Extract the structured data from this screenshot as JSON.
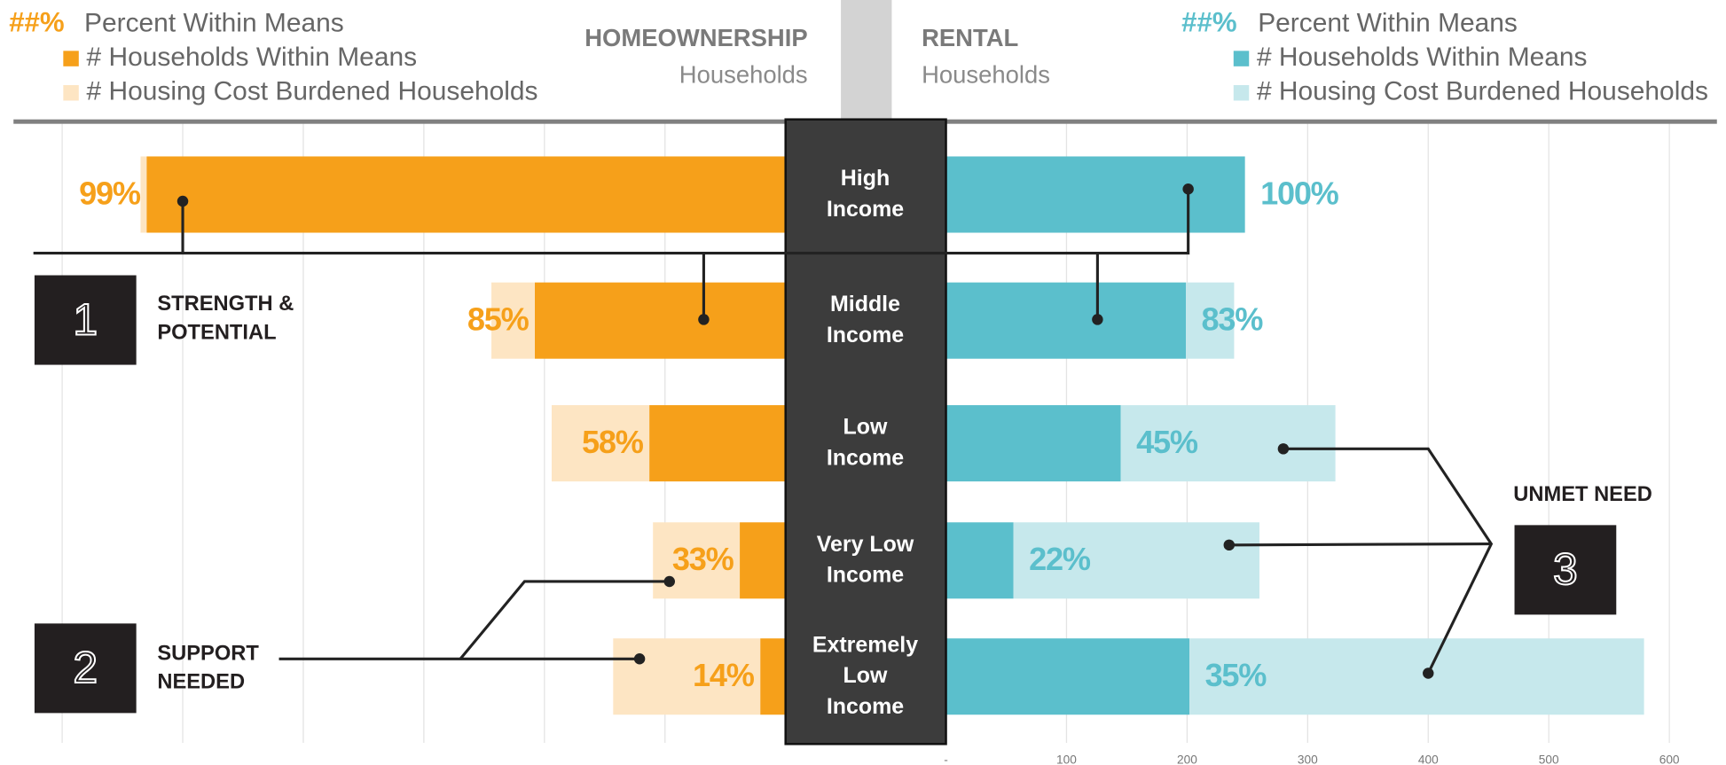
{
  "chart_data": {
    "type": "diverging_bar",
    "categories": [
      "High\nIncome",
      "Middle\nIncome",
      "Low\nIncome",
      "Very Low\nIncome",
      "Extremely\nLow\nIncome"
    ],
    "xlim": [
      0,
      650
    ],
    "xticks": [
      {
        "value": 0,
        "label": "-"
      },
      100,
      200,
      300,
      400,
      500,
      600
    ],
    "grid": true,
    "panels": [
      {
        "title": "HOMEOWNERSHIP",
        "subtitle": "Households",
        "side": "left",
        "percent_marker": "##%",
        "percent_name": "Percent Within Means",
        "percent_values": [
          99,
          85,
          58,
          33,
          14
        ],
        "percent_labels": [
          "99%",
          "85%",
          "58%",
          "33%",
          "14%"
        ],
        "percent_color": "#f6a01a",
        "series": [
          {
            "name": "# Households Within Means",
            "color": "#f6a01a",
            "values": [
              530,
              208,
              113,
              38,
              21
            ]
          },
          {
            "name": "# Housing Cost Burdened Households",
            "color": "#fde5c3",
            "values": [
              5,
              36,
              81,
              72,
              122
            ]
          }
        ]
      },
      {
        "title": "RENTAL",
        "subtitle": "Households",
        "side": "right",
        "percent_marker": "##%",
        "percent_name": "Percent Within Means",
        "percent_values": [
          100,
          83,
          45,
          22,
          35
        ],
        "percent_labels": [
          "100%",
          "83%",
          "45%",
          "22%",
          "35%"
        ],
        "percent_color": "#5bbfcc",
        "series": [
          {
            "name": "# Households Within Means",
            "color": "#5bbfcc",
            "values": [
              248,
              199,
              145,
              56,
              202
            ]
          },
          {
            "name": "# Housing Cost Burdened Households",
            "color": "#c6e8ec",
            "values": [
              0,
              40,
              178,
              204,
              377
            ]
          }
        ]
      }
    ],
    "annotations": [
      {
        "number": "1",
        "text": "STRENGTH &\nPOTENTIAL"
      },
      {
        "number": "2",
        "text": "SUPPORT\nNEEDED"
      },
      {
        "number": "3",
        "text": "UNMET NEED"
      }
    ]
  }
}
